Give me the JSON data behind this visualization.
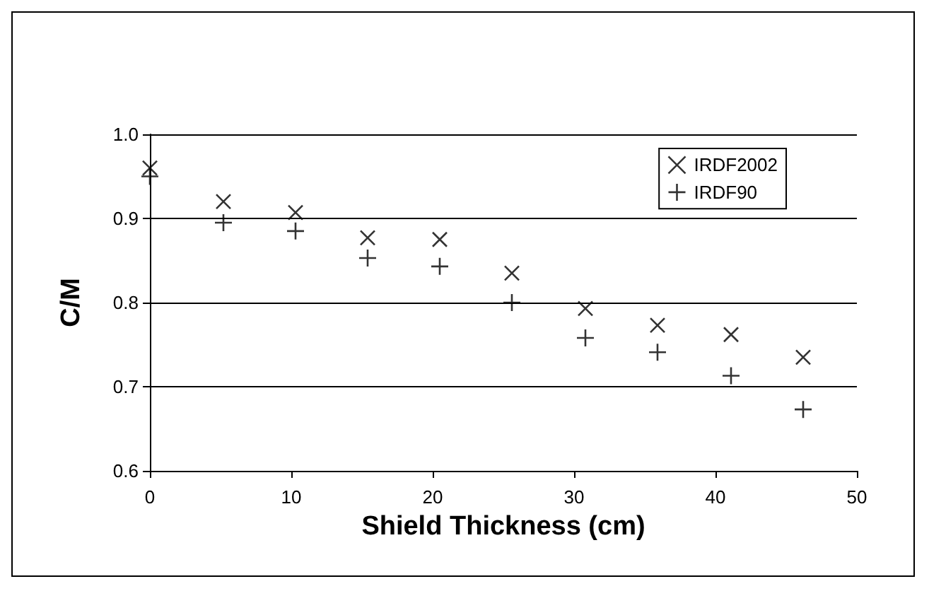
{
  "chart_data": {
    "type": "scatter",
    "xlabel": "Shield Thickness (cm)",
    "ylabel": "C/M",
    "x": [
      0,
      5.2,
      10.3,
      15.4,
      20.5,
      25.6,
      30.8,
      35.9,
      41.1,
      46.2
    ],
    "series": [
      {
        "name": "IRDF2002",
        "color": "#000000",
        "marker": "cross",
        "values": [
          0.96,
          0.92,
          0.907,
          0.877,
          0.875,
          0.835,
          0.793,
          0.773,
          0.762,
          0.735
        ]
      },
      {
        "name": "IRDF90",
        "color": "#000000",
        "marker": "plus",
        "values": [
          0.95,
          0.895,
          0.885,
          0.853,
          0.843,
          0.8,
          0.758,
          0.741,
          0.713,
          0.673
        ]
      }
    ],
    "xlim": [
      0,
      50
    ],
    "xticks": [
      0,
      10,
      20,
      30,
      40,
      50
    ],
    "ylim": [
      0.6,
      1
    ],
    "yticks": [
      0.6,
      0.7,
      0.8,
      0.9,
      {
        "value": 1,
        "label": "1.0"
      }
    ],
    "grid": "y",
    "legend": "top right"
  }
}
